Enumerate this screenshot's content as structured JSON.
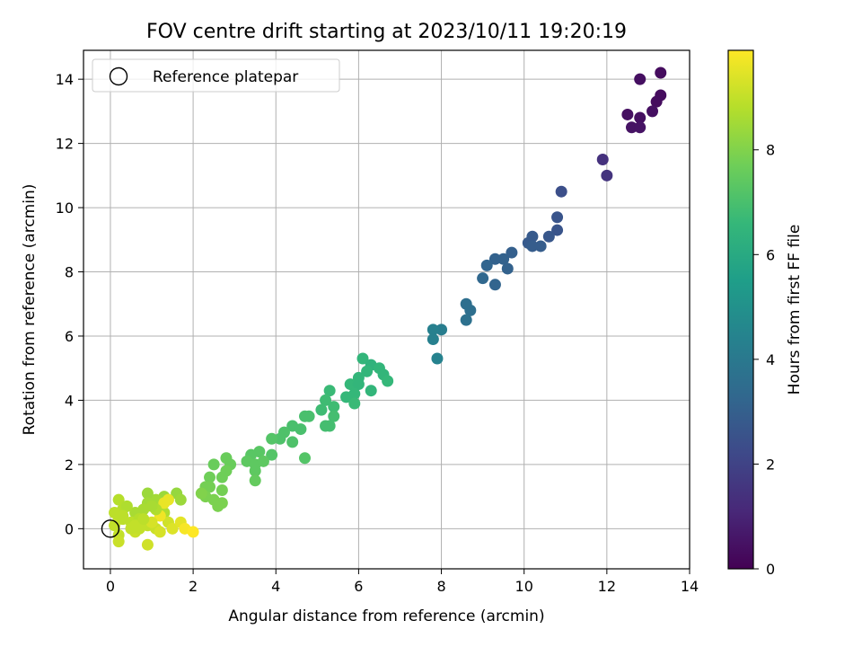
{
  "chart_data": {
    "type": "scatter",
    "title": "FOV centre drift starting at 2023/10/11 19:20:19",
    "xlabel": "Angular distance from reference (arcmin)",
    "ylabel": "Rotation from reference (arcmin)",
    "xlim": [
      -0.65,
      14
    ],
    "ylim": [
      -1.25,
      14.9
    ],
    "xticks": [
      0,
      2,
      4,
      6,
      8,
      10,
      12,
      14
    ],
    "yticks": [
      0,
      2,
      4,
      6,
      8,
      10,
      12,
      14
    ],
    "grid": true,
    "legend": {
      "placement": "top-left",
      "entries": [
        "Reference platepar"
      ]
    },
    "reference_point": {
      "x": 0,
      "y": 0
    },
    "colorbar": {
      "label": "Hours from first FF file",
      "range": [
        0,
        9.9
      ],
      "ticks": [
        0,
        2,
        4,
        6,
        8
      ],
      "colormap": [
        "#440154",
        "#482878",
        "#3e4989",
        "#31688e",
        "#26828e",
        "#1f9e89",
        "#35b779",
        "#6ece58",
        "#b5de2b",
        "#fde725"
      ]
    },
    "points": [
      [
        13.3,
        14.2,
        0.3
      ],
      [
        12.8,
        14.0,
        0.4
      ],
      [
        13.3,
        13.5,
        0.3
      ],
      [
        13.2,
        13.3,
        0.3
      ],
      [
        13.1,
        13.0,
        0.4
      ],
      [
        12.5,
        12.9,
        0.4
      ],
      [
        12.8,
        12.8,
        0.4
      ],
      [
        12.6,
        12.5,
        0.5
      ],
      [
        12.8,
        12.5,
        0.5
      ],
      [
        11.9,
        11.5,
        1.4
      ],
      [
        12.0,
        11.0,
        1.5
      ],
      [
        10.9,
        10.5,
        2.4
      ],
      [
        10.8,
        9.7,
        2.6
      ],
      [
        10.8,
        9.3,
        2.6
      ],
      [
        10.6,
        9.1,
        2.7
      ],
      [
        10.2,
        9.1,
        2.8
      ],
      [
        10.1,
        8.9,
        2.8
      ],
      [
        10.4,
        8.8,
        2.9
      ],
      [
        10.2,
        8.8,
        2.9
      ],
      [
        9.7,
        8.6,
        3.0
      ],
      [
        9.5,
        8.4,
        3.1
      ],
      [
        9.3,
        8.4,
        3.1
      ],
      [
        9.1,
        8.2,
        3.2
      ],
      [
        9.6,
        8.1,
        3.1
      ],
      [
        9.0,
        7.8,
        3.3
      ],
      [
        9.3,
        7.6,
        3.2
      ],
      [
        8.6,
        7.0,
        3.6
      ],
      [
        8.7,
        6.8,
        3.6
      ],
      [
        8.6,
        6.5,
        3.7
      ],
      [
        8.0,
        6.2,
        4.2
      ],
      [
        7.8,
        6.2,
        4.3
      ],
      [
        7.8,
        5.9,
        4.3
      ],
      [
        7.9,
        5.3,
        4.4
      ],
      [
        6.1,
        5.3,
        6.5
      ],
      [
        6.3,
        5.1,
        6.4
      ],
      [
        6.5,
        5.0,
        6.5
      ],
      [
        6.2,
        4.9,
        6.5
      ],
      [
        6.6,
        4.8,
        6.5
      ],
      [
        6.7,
        4.6,
        6.6
      ],
      [
        6.0,
        4.7,
        6.5
      ],
      [
        5.8,
        4.5,
        6.6
      ],
      [
        6.0,
        4.5,
        6.5
      ],
      [
        6.3,
        4.3,
        6.5
      ],
      [
        5.9,
        4.2,
        6.6
      ],
      [
        5.7,
        4.1,
        6.6
      ],
      [
        5.9,
        3.9,
        6.7
      ],
      [
        5.3,
        4.3,
        6.7
      ],
      [
        5.2,
        4.0,
        6.8
      ],
      [
        5.4,
        3.8,
        6.8
      ],
      [
        5.1,
        3.7,
        6.8
      ],
      [
        5.4,
        3.5,
        6.9
      ],
      [
        5.3,
        3.2,
        6.9
      ],
      [
        5.2,
        3.2,
        6.9
      ],
      [
        4.8,
        3.5,
        7.0
      ],
      [
        4.7,
        3.5,
        7.0
      ],
      [
        4.4,
        3.2,
        7.0
      ],
      [
        4.6,
        3.1,
        7.0
      ],
      [
        4.2,
        3.0,
        7.1
      ],
      [
        4.1,
        2.8,
        7.1
      ],
      [
        4.4,
        2.7,
        7.1
      ],
      [
        4.7,
        2.2,
        7.2
      ],
      [
        3.9,
        2.8,
        7.2
      ],
      [
        3.9,
        2.3,
        7.2
      ],
      [
        3.6,
        2.4,
        7.3
      ],
      [
        3.4,
        2.3,
        7.3
      ],
      [
        3.3,
        2.1,
        7.4
      ],
      [
        3.5,
        2.0,
        7.4
      ],
      [
        3.7,
        2.1,
        7.4
      ],
      [
        3.5,
        1.8,
        7.4
      ],
      [
        3.5,
        1.5,
        7.5
      ],
      [
        2.8,
        2.2,
        7.6
      ],
      [
        2.9,
        2.0,
        7.6
      ],
      [
        2.5,
        2.0,
        7.6
      ],
      [
        2.8,
        1.8,
        7.7
      ],
      [
        2.7,
        1.6,
        7.7
      ],
      [
        2.4,
        1.6,
        7.7
      ],
      [
        2.3,
        1.3,
        7.8
      ],
      [
        2.4,
        1.3,
        7.8
      ],
      [
        2.7,
        1.2,
        7.8
      ],
      [
        2.3,
        1.0,
        7.9
      ],
      [
        2.5,
        0.9,
        7.9
      ],
      [
        2.7,
        0.8,
        7.9
      ],
      [
        2.6,
        0.7,
        7.9
      ],
      [
        2.2,
        1.1,
        8.0
      ],
      [
        1.6,
        1.1,
        8.3
      ],
      [
        1.7,
        0.9,
        8.4
      ],
      [
        1.3,
        1.0,
        8.4
      ],
      [
        1.1,
        0.9,
        8.5
      ],
      [
        0.9,
        1.1,
        8.4
      ],
      [
        0.9,
        0.8,
        8.5
      ],
      [
        0.8,
        0.6,
        8.6
      ],
      [
        1.3,
        0.5,
        8.7
      ],
      [
        0.6,
        0.5,
        8.6
      ],
      [
        0.3,
        0.6,
        8.8
      ],
      [
        0.2,
        0.9,
        8.8
      ],
      [
        0.4,
        0.7,
        8.7
      ],
      [
        0.1,
        0.5,
        8.9
      ],
      [
        0.3,
        0.3,
        8.9
      ],
      [
        0.5,
        0.2,
        8.9
      ],
      [
        0.7,
        0.3,
        8.8
      ],
      [
        0.9,
        0.1,
        9.0
      ],
      [
        1.1,
        0.0,
        9.1
      ],
      [
        1.4,
        0.2,
        9.2
      ],
      [
        1.5,
        0.0,
        9.4
      ],
      [
        1.7,
        0.2,
        9.5
      ],
      [
        1.3,
        0.8,
        9.6
      ],
      [
        1.4,
        0.9,
        9.6
      ],
      [
        1.2,
        0.4,
        9.7
      ],
      [
        1.8,
        0.0,
        9.8
      ],
      [
        2.0,
        -0.1,
        9.9
      ],
      [
        0.2,
        0.3,
        8.9
      ],
      [
        0.1,
        0.1,
        9.0
      ],
      [
        0.2,
        -0.2,
        9.0
      ],
      [
        0.2,
        -0.4,
        9.1
      ],
      [
        0.6,
        -0.1,
        9.1
      ],
      [
        0.7,
        0.0,
        9.0
      ],
      [
        0.9,
        -0.5,
        9.2
      ],
      [
        1.0,
        0.2,
        9.3
      ],
      [
        0.5,
        0.0,
        9.0
      ],
      [
        1.2,
        -0.1,
        9.3
      ],
      [
        0.3,
        0.4,
        8.9
      ],
      [
        0.6,
        0.1,
        9.0
      ],
      [
        0.8,
        0.3,
        8.9
      ],
      [
        1.1,
        0.6,
        8.7
      ],
      [
        1.0,
        0.7,
        8.6
      ]
    ]
  }
}
